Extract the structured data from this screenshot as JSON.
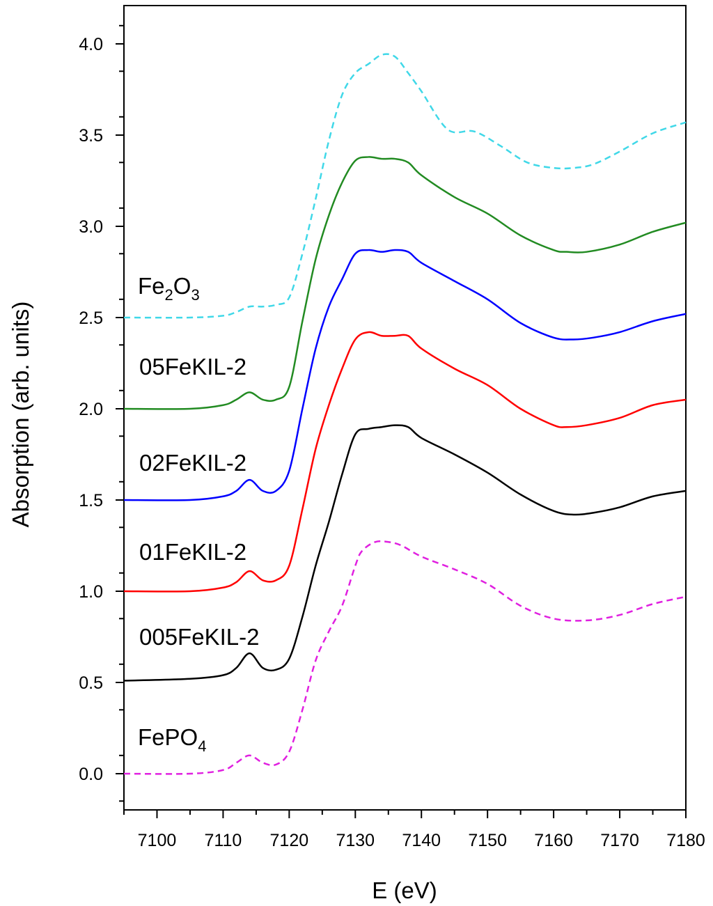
{
  "chart_data": {
    "type": "line",
    "xlabel": "E (eV)",
    "ylabel": "Absorption (arb. units)",
    "xlim": [
      7095,
      7180
    ],
    "ylim": [
      -0.2,
      4.2
    ],
    "x_ticks": [
      7100,
      7110,
      7120,
      7130,
      7140,
      7150,
      7160,
      7170,
      7180
    ],
    "x_tick_labels": [
      "7100",
      "7110",
      "7120",
      "7130",
      "7140",
      "7150",
      "7160",
      "7170",
      "7180"
    ],
    "y_ticks": [
      0.0,
      0.5,
      1.0,
      1.5,
      2.0,
      2.5,
      3.0,
      3.5,
      4.0
    ],
    "y_tick_labels": [
      "0.0",
      "0.5",
      "1.0",
      "1.5",
      "2.0",
      "2.5",
      "3.0",
      "3.5",
      "4.0"
    ],
    "series": [
      {
        "name": "FePO4",
        "label_main": "FePO",
        "label_sub": "4",
        "color": "#e020e0",
        "dashed": true,
        "x": [
          7095,
          7105,
          7110,
          7112,
          7114,
          7116,
          7118,
          7120,
          7122,
          7124,
          7126,
          7128,
          7130,
          7131,
          7133,
          7135,
          7137,
          7140,
          7145,
          7150,
          7155,
          7160,
          7165,
          7170,
          7175,
          7180
        ],
        "y": [
          0.0,
          0.0,
          0.02,
          0.06,
          0.1,
          0.06,
          0.05,
          0.12,
          0.35,
          0.62,
          0.78,
          0.92,
          1.14,
          1.22,
          1.27,
          1.27,
          1.25,
          1.19,
          1.12,
          1.04,
          0.92,
          0.85,
          0.84,
          0.87,
          0.93,
          0.97
        ]
      },
      {
        "name": "005FeKIL-2",
        "label_main": "005FeKIL-2",
        "label_sub": "",
        "color": "#000000",
        "dashed": false,
        "x": [
          7095,
          7105,
          7110,
          7112,
          7114,
          7116,
          7118,
          7120,
          7122,
          7124,
          7126,
          7128,
          7130,
          7132,
          7134,
          7136,
          7138,
          7140,
          7145,
          7150,
          7155,
          7160,
          7163,
          7166,
          7170,
          7175,
          7180
        ],
        "y": [
          0.51,
          0.52,
          0.54,
          0.58,
          0.66,
          0.58,
          0.57,
          0.63,
          0.86,
          1.14,
          1.38,
          1.64,
          1.86,
          1.89,
          1.9,
          1.91,
          1.9,
          1.84,
          1.75,
          1.65,
          1.53,
          1.44,
          1.42,
          1.43,
          1.46,
          1.52,
          1.55
        ]
      },
      {
        "name": "01FeKIL-2",
        "label_main": "01FeKIL-2",
        "label_sub": "",
        "color": "#ff0000",
        "dashed": false,
        "x": [
          7095,
          7105,
          7110,
          7112,
          7114,
          7116,
          7118,
          7120,
          7122,
          7124,
          7126,
          7128,
          7130,
          7132,
          7134,
          7136,
          7138,
          7140,
          7145,
          7150,
          7155,
          7160,
          7162,
          7165,
          7170,
          7175,
          7180
        ],
        "y": [
          1.0,
          1.0,
          1.02,
          1.05,
          1.11,
          1.06,
          1.06,
          1.14,
          1.45,
          1.78,
          2.02,
          2.22,
          2.38,
          2.42,
          2.4,
          2.4,
          2.4,
          2.33,
          2.22,
          2.13,
          2.0,
          1.91,
          1.9,
          1.91,
          1.95,
          2.02,
          2.05
        ]
      },
      {
        "name": "02FeKIL-2",
        "label_main": "02FeKIL-2",
        "label_sub": "",
        "color": "#0000ff",
        "dashed": false,
        "x": [
          7095,
          7105,
          7110,
          7112,
          7114,
          7116,
          7118,
          7120,
          7122,
          7124,
          7126,
          7128,
          7130,
          7132,
          7134,
          7136,
          7138,
          7140,
          7145,
          7150,
          7155,
          7160,
          7163,
          7166,
          7170,
          7175,
          7180
        ],
        "y": [
          1.5,
          1.5,
          1.52,
          1.55,
          1.61,
          1.55,
          1.55,
          1.66,
          2.0,
          2.33,
          2.56,
          2.71,
          2.85,
          2.87,
          2.86,
          2.87,
          2.86,
          2.8,
          2.7,
          2.6,
          2.47,
          2.39,
          2.38,
          2.39,
          2.42,
          2.48,
          2.52
        ]
      },
      {
        "name": "05FeKIL-2",
        "label_main": "05FeKIL-2",
        "label_sub": "",
        "color": "#228b22",
        "dashed": false,
        "x": [
          7095,
          7105,
          7110,
          7112,
          7114,
          7116,
          7118,
          7120,
          7122,
          7124,
          7126,
          7128,
          7130,
          7132,
          7134,
          7136,
          7138,
          7140,
          7145,
          7150,
          7155,
          7160,
          7162,
          7165,
          7170,
          7175,
          7180
        ],
        "y": [
          2.0,
          2.0,
          2.02,
          2.05,
          2.09,
          2.05,
          2.05,
          2.12,
          2.48,
          2.82,
          3.06,
          3.24,
          3.36,
          3.38,
          3.37,
          3.37,
          3.35,
          3.28,
          3.16,
          3.07,
          2.95,
          2.87,
          2.86,
          2.86,
          2.9,
          2.97,
          3.02
        ]
      },
      {
        "name": "Fe2O3",
        "label_main": "Fe",
        "label_sub": "2",
        "label_main2": "O",
        "label_sub2": "3",
        "color": "#40d8e8",
        "dashed": true,
        "x": [
          7095,
          7105,
          7110,
          7112,
          7114,
          7116,
          7118,
          7120,
          7122,
          7124,
          7126,
          7128,
          7130,
          7132,
          7134,
          7136,
          7138,
          7140,
          7144,
          7148,
          7152,
          7156,
          7160,
          7163,
          7166,
          7170,
          7175,
          7180
        ],
        "y": [
          2.5,
          2.5,
          2.51,
          2.53,
          2.56,
          2.56,
          2.57,
          2.61,
          2.85,
          3.15,
          3.47,
          3.72,
          3.84,
          3.89,
          3.94,
          3.93,
          3.84,
          3.74,
          3.53,
          3.52,
          3.44,
          3.35,
          3.32,
          3.32,
          3.34,
          3.41,
          3.51,
          3.57
        ]
      }
    ]
  }
}
